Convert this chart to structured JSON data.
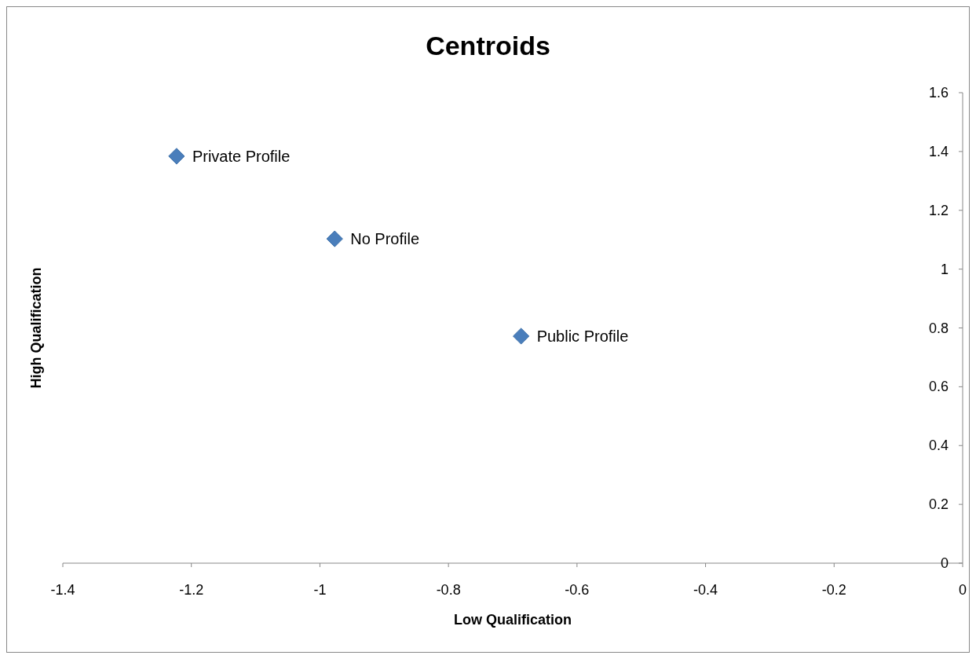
{
  "chart_data": {
    "type": "scatter",
    "title": "Centroids",
    "xlabel": "Low Qualification",
    "ylabel": "High Qualification",
    "x": [
      -1.223,
      -0.977,
      -0.687
    ],
    "values": [
      1.384,
      1.103,
      0.772
    ],
    "color": "#4a7ebb",
    "marker": "diamond",
    "xlim": [
      -1.4,
      0
    ],
    "xticks": [
      -1.4,
      -1.2,
      -1,
      -0.8,
      -0.6,
      -0.4,
      -0.2,
      0
    ],
    "ylim": [
      0,
      1.6
    ],
    "yticks": [
      0,
      0.2,
      0.4,
      0.6,
      0.8,
      1,
      1.2,
      1.4,
      1.6
    ],
    "grid": false,
    "annotations": [
      {
        "text": "Private Profile",
        "x": -1.223,
        "y": 1.384
      },
      {
        "text": "No Profile",
        "x": -0.977,
        "y": 1.103
      },
      {
        "text": "Public Profile",
        "x": -0.687,
        "y": 0.772
      }
    ]
  }
}
